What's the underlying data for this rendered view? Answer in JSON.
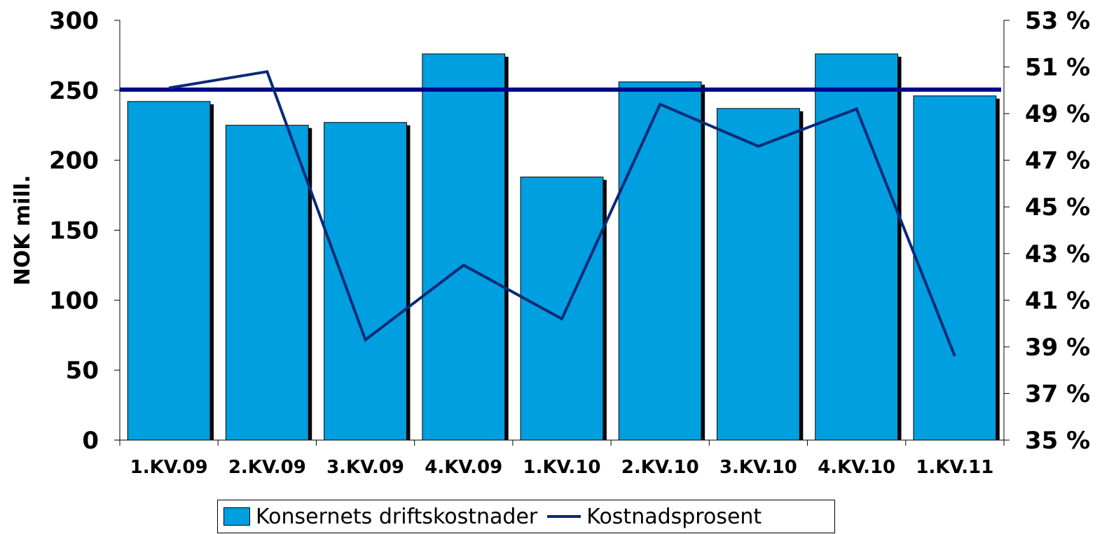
{
  "chart_data": {
    "type": "bar",
    "categories": [
      "1.KV.09",
      "2.KV.09",
      "3.KV.09",
      "4.KV.09",
      "1.KV.10",
      "2.KV.10",
      "3.KV.10",
      "4.KV.10",
      "1.KV.11"
    ],
    "series": [
      {
        "name": "Konsernets driftskostnader",
        "type": "bar",
        "axis": "left",
        "color": "#009fdf",
        "values": [
          242,
          225,
          227,
          276,
          188,
          256,
          237,
          276,
          246
        ]
      },
      {
        "name": "Kostnadsprosent",
        "type": "line",
        "axis": "right",
        "color": "#0a2a78",
        "values": [
          50.1,
          50.8,
          39.3,
          42.5,
          40.2,
          49.4,
          47.6,
          49.2,
          38.6
        ]
      }
    ],
    "reference_line": {
      "axis": "left",
      "value": 250.5,
      "color": "#00008b"
    },
    "ylabel": "NOK mill.",
    "ylim": [
      0,
      300
    ],
    "yticks": [
      "0",
      "50",
      "100",
      "150",
      "200",
      "250",
      "300"
    ],
    "y2lim": [
      35,
      53
    ],
    "y2ticks": [
      "35 %",
      "37 %",
      "39 %",
      "41 %",
      "43 %",
      "45 %",
      "47 %",
      "49 %",
      "51 %",
      "53 %"
    ],
    "grid": false,
    "legend_position": "bottom"
  },
  "legend": {
    "bar_label": "Konsernets driftskostnader",
    "line_label": "Kostnadsprosent"
  }
}
